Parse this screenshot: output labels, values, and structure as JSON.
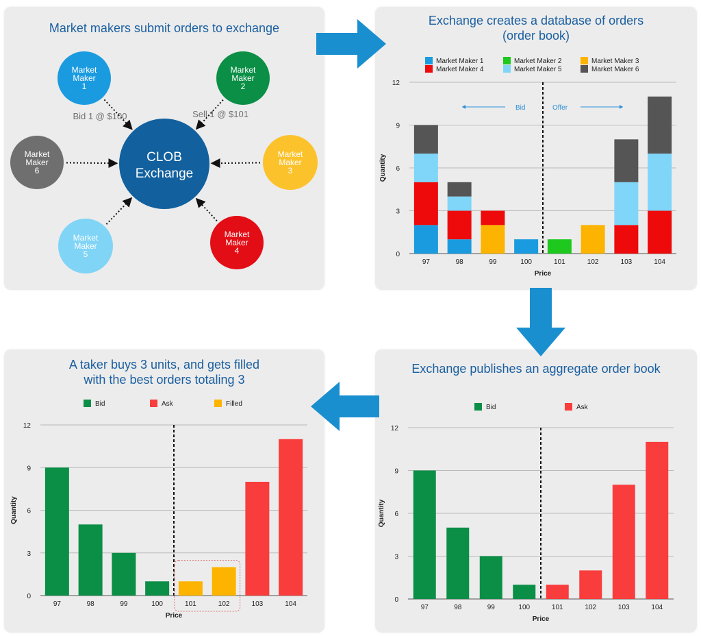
{
  "colors": {
    "title": "#1a5fa0",
    "mm1": "#1a9be0",
    "mm2": "#1ec81e",
    "mm3": "#fcb400",
    "mm4": "#ee0a0a",
    "mm5": "#7fd6f8",
    "mm6": "#555555",
    "bid": "#0b8f46",
    "ask": "#f93c3c",
    "filled": "#fcb400",
    "arrow": "#1a8fd0"
  },
  "panel1": {
    "title": "Market makers submit orders to exchange",
    "center": {
      "line1": "CLOB",
      "line2": "Exchange"
    },
    "nodes": [
      {
        "id": "mm1",
        "lines": [
          "Market",
          "Maker",
          "1"
        ],
        "color": "#1a9be0"
      },
      {
        "id": "mm2",
        "lines": [
          "Market",
          "Maker",
          "2"
        ],
        "color": "#0b8f46"
      },
      {
        "id": "mm3",
        "lines": [
          "Market",
          "Maker",
          "3"
        ],
        "color": "#fcc22c"
      },
      {
        "id": "mm4",
        "lines": [
          "Market",
          "Maker",
          "4"
        ],
        "color": "#e30d16"
      },
      {
        "id": "mm5",
        "lines": [
          "Market",
          "Maker",
          "5"
        ],
        "color": "#80d4f6"
      },
      {
        "id": "mm6",
        "lines": [
          "Market",
          "Maker",
          "6"
        ],
        "color": "#6f6f6f"
      }
    ],
    "bid_label": "Bid 1 @ $100",
    "sell_label": "Sell 1 @ $101"
  },
  "panel2": {
    "title_line1": "Exchange creates a database of orders",
    "title_line2": "(order book)",
    "bid_label": "Bid",
    "offer_label": "Offer"
  },
  "panel3": {
    "title_line1": "A taker buys 3 units, and gets filled",
    "title_line2": "with the best orders totaling 3"
  },
  "panel4": {
    "title": "Exchange publishes an aggregate order book"
  },
  "chart_data": [
    {
      "type": "bar",
      "stacked": true,
      "title": "Exchange creates a database of orders (order book)",
      "xlabel": "Price",
      "ylabel": "Quantity",
      "ylim": [
        0,
        12
      ],
      "yticks": [
        0,
        3,
        6,
        9,
        12
      ],
      "grid": true,
      "legend": "top",
      "categories": [
        "97",
        "98",
        "99",
        "100",
        "101",
        "102",
        "103",
        "104"
      ],
      "divider_after_index": 3,
      "series": [
        {
          "name": "Market Maker 1",
          "color": "#1a9be0",
          "values": [
            2,
            1,
            0,
            1,
            0,
            0,
            0,
            0
          ]
        },
        {
          "name": "Market Maker 2",
          "color": "#1ec81e",
          "values": [
            0,
            0,
            0,
            0,
            1,
            0,
            0,
            0
          ]
        },
        {
          "name": "Market Maker 3",
          "color": "#fcb400",
          "values": [
            0,
            0,
            2,
            0,
            0,
            2,
            0,
            0
          ]
        },
        {
          "name": "Market Maker 4",
          "color": "#ee0a0a",
          "values": [
            3,
            2,
            1,
            0,
            0,
            0,
            2,
            3
          ]
        },
        {
          "name": "Market Maker 5",
          "color": "#7fd6f8",
          "values": [
            2,
            1,
            0,
            0,
            0,
            0,
            3,
            4
          ]
        },
        {
          "name": "Market Maker 6",
          "color": "#555555",
          "values": [
            2,
            1,
            0,
            0,
            0,
            0,
            3,
            4
          ]
        }
      ]
    },
    {
      "type": "bar",
      "title": "A taker buys 3 units, and gets filled with the best orders totaling 3",
      "xlabel": "Price",
      "ylabel": "Quantity",
      "ylim": [
        0,
        12
      ],
      "yticks": [
        0,
        3,
        6,
        9,
        12
      ],
      "grid": true,
      "legend": "top",
      "categories": [
        "97",
        "98",
        "99",
        "100",
        "101",
        "102",
        "103",
        "104"
      ],
      "divider_after_index": 3,
      "legend_items": [
        {
          "name": "Bid",
          "color": "#0b8f46"
        },
        {
          "name": "Ask",
          "color": "#f93c3c"
        },
        {
          "name": "Filled",
          "color": "#fcb400"
        }
      ],
      "values": [
        9,
        5,
        3,
        1,
        1,
        2,
        8,
        11
      ],
      "bar_groups": [
        "Bid",
        "Bid",
        "Bid",
        "Bid",
        "Filled",
        "Filled",
        "Ask",
        "Ask"
      ],
      "highlight": [
        "101",
        "102"
      ]
    },
    {
      "type": "bar",
      "title": "Exchange publishes an aggregate order book",
      "xlabel": "Price",
      "ylabel": "Quantity",
      "ylim": [
        0,
        12
      ],
      "yticks": [
        0,
        3,
        6,
        9,
        12
      ],
      "grid": true,
      "legend": "top",
      "categories": [
        "97",
        "98",
        "99",
        "100",
        "101",
        "102",
        "103",
        "104"
      ],
      "divider_after_index": 3,
      "legend_items": [
        {
          "name": "Bid",
          "color": "#0b8f46"
        },
        {
          "name": "Ask",
          "color": "#f93c3c"
        }
      ],
      "values": [
        9,
        5,
        3,
        1,
        1,
        2,
        8,
        11
      ],
      "bar_groups": [
        "Bid",
        "Bid",
        "Bid",
        "Bid",
        "Ask",
        "Ask",
        "Ask",
        "Ask"
      ]
    }
  ]
}
